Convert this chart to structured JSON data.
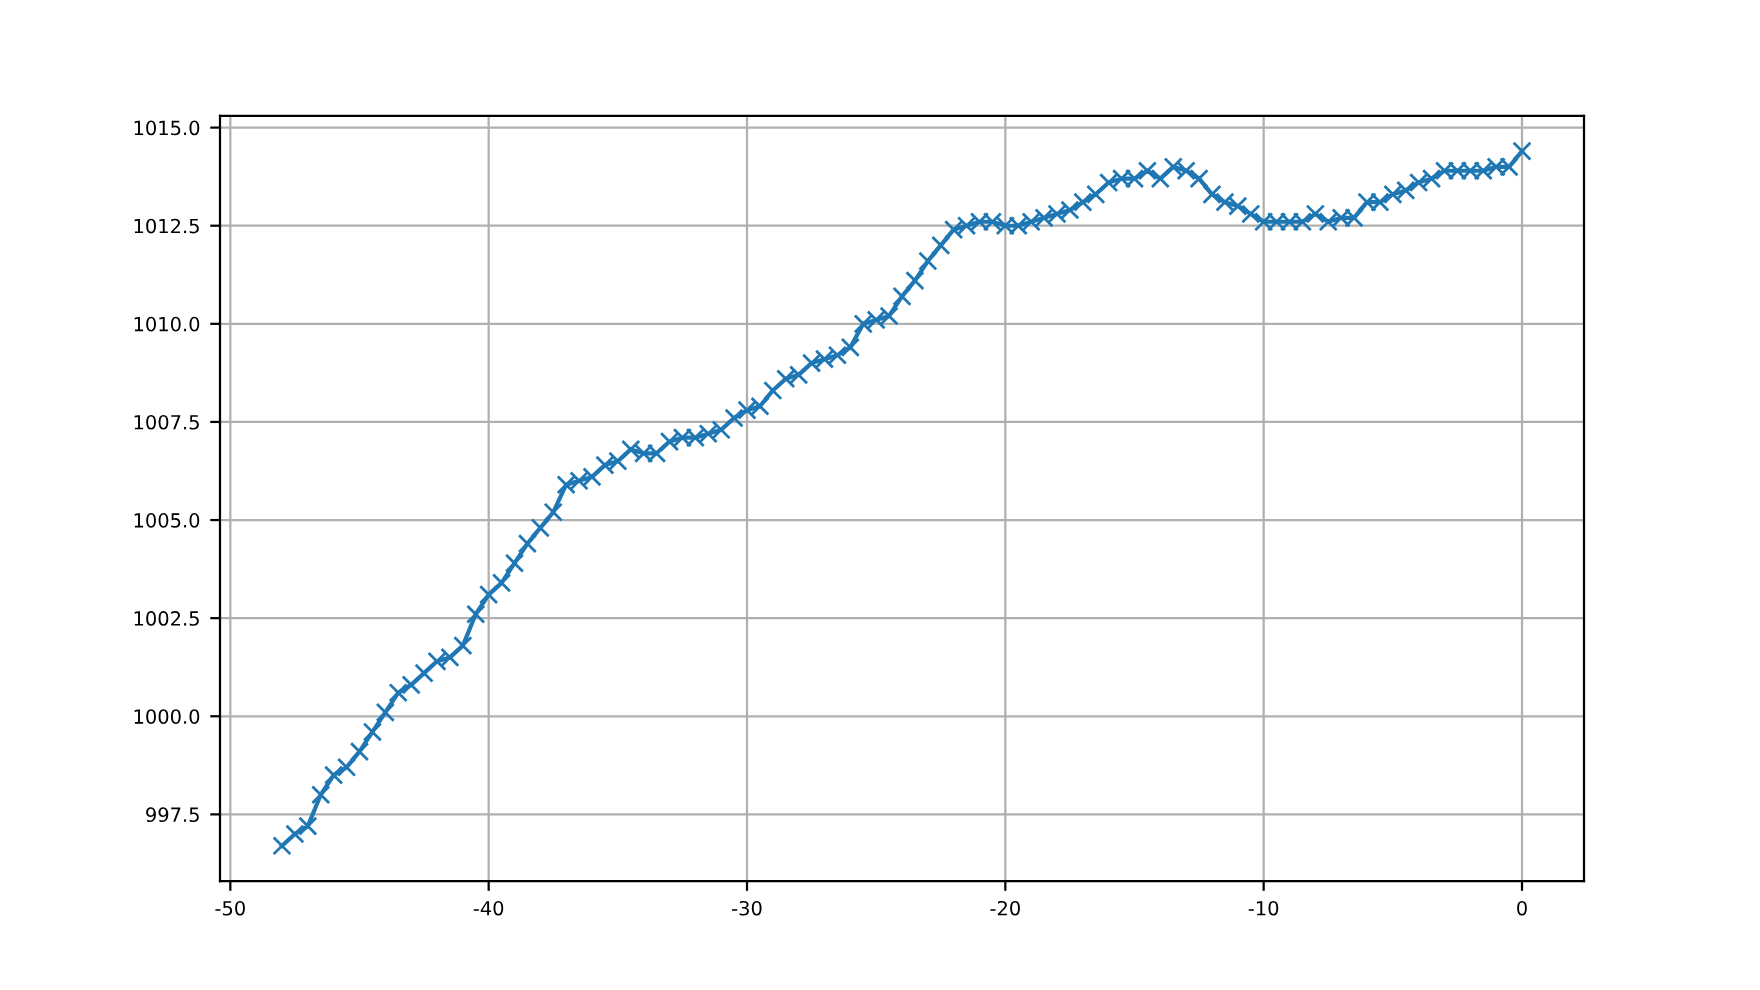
{
  "chart_data": {
    "type": "line",
    "marker": "cross",
    "grid": true,
    "x": [
      -48,
      -47.5,
      -47,
      -46.5,
      -46,
      -45.5,
      -45,
      -44.5,
      -44,
      -43.5,
      -43,
      -42.5,
      -42,
      -41.5,
      -41,
      -40.5,
      -40,
      -39.5,
      -39,
      -38.5,
      -38,
      -37.5,
      -37,
      -36.5,
      -36,
      -35.5,
      -35,
      -34.5,
      -34,
      -33.5,
      -33,
      -32.5,
      -32,
      -31.5,
      -31,
      -30.5,
      -30,
      -29.5,
      -29,
      -28.5,
      -28,
      -27.5,
      -27,
      -26.5,
      -26,
      -25.5,
      -25,
      -24.5,
      -24,
      -23.5,
      -23,
      -22.5,
      -22,
      -21.5,
      -21,
      -20.5,
      -20,
      -19.5,
      -19,
      -18.5,
      -18,
      -17.5,
      -17,
      -16.5,
      -16,
      -15.5,
      -15,
      -14.5,
      -14,
      -13.5,
      -13,
      -12.5,
      -12,
      -11.5,
      -11,
      -10.5,
      -10,
      -9.5,
      -9,
      -8.5,
      -8,
      -7.5,
      -7,
      -6.5,
      -6,
      -5.5,
      -5,
      -4.5,
      -4,
      -3.5,
      -3,
      -2.5,
      -2,
      -1.5,
      -1,
      -0.5,
      0
    ],
    "series": [
      {
        "color": "#1f77b4",
        "values": [
          996.7,
          997.0,
          997.2,
          998.0,
          998.5,
          998.7,
          999.1,
          999.6,
          1000.1,
          1000.6,
          1000.8,
          1001.1,
          1001.4,
          1001.5,
          1001.8,
          1002.6,
          1003.1,
          1003.4,
          1003.9,
          1004.4,
          1004.8,
          1005.2,
          1005.9,
          1006.0,
          1006.1,
          1006.4,
          1006.5,
          1006.8,
          1006.7,
          1006.7,
          1007.0,
          1007.1,
          1007.1,
          1007.2,
          1007.3,
          1007.6,
          1007.8,
          1007.9,
          1008.3,
          1008.6,
          1008.7,
          1009.0,
          1009.1,
          1009.2,
          1009.4,
          1010.0,
          1010.1,
          1010.2,
          1010.7,
          1011.1,
          1011.6,
          1012.0,
          1012.4,
          1012.5,
          1012.6,
          1012.6,
          1012.5,
          1012.5,
          1012.6,
          1012.7,
          1012.8,
          1012.9,
          1013.1,
          1013.3,
          1013.6,
          1013.7,
          1013.7,
          1013.9,
          1013.7,
          1014.0,
          1013.9,
          1013.7,
          1013.3,
          1013.1,
          1013.0,
          1012.8,
          1012.6,
          1012.6,
          1012.6,
          1012.6,
          1012.8,
          1012.6,
          1012.7,
          1012.7,
          1013.1,
          1013.1,
          1013.3,
          1013.4,
          1013.6,
          1013.7,
          1013.9,
          1013.9,
          1013.9,
          1013.9,
          1014.0,
          1014.0,
          1014.4
        ]
      }
    ],
    "xlim": [
      -50.4,
      2.4
    ],
    "xticks": [
      -50,
      -40,
      -30,
      -20,
      -10,
      0
    ],
    "ylim": [
      995.8,
      1015.3
    ],
    "yticks": [
      {
        "value": 997.5,
        "label": "997.5"
      },
      {
        "value": 1000,
        "label": "1000.0"
      },
      {
        "value": 1002.5,
        "label": "1002.5"
      },
      {
        "value": 1005,
        "label": "1005.0"
      },
      {
        "value": 1007.5,
        "label": "1007.5"
      },
      {
        "value": 1010,
        "label": "1010.0"
      },
      {
        "value": 1012.5,
        "label": "1012.5"
      },
      {
        "value": 1015,
        "label": "1015.0"
      }
    ]
  }
}
